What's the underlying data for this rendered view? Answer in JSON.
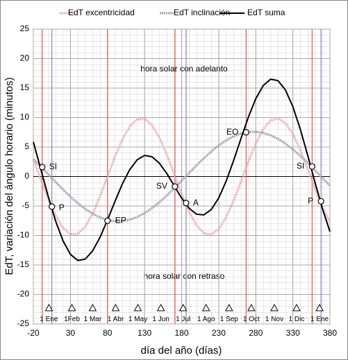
{
  "chart_data": {
    "type": "line",
    "xlabel": "día del año (días)",
    "ylabel": "EdT, variación del ángulo horario (minutos)",
    "xlim": [
      -20,
      380
    ],
    "xticks": [
      -20,
      30,
      80,
      130,
      180,
      230,
      280,
      330,
      380
    ],
    "ylim": [
      -25,
      25
    ],
    "yticks": [
      -25,
      -20,
      -15,
      -10,
      -5,
      0,
      5,
      10,
      15,
      20,
      25
    ],
    "grid": true,
    "legend": "top",
    "x": [
      -20,
      -10,
      0,
      10,
      20,
      30,
      40,
      50,
      60,
      70,
      80,
      90,
      100,
      110,
      120,
      130,
      140,
      150,
      160,
      170,
      180,
      190,
      200,
      210,
      220,
      230,
      240,
      250,
      260,
      270,
      280,
      290,
      300,
      310,
      320,
      330,
      340,
      350,
      360,
      370,
      380
    ],
    "series": [
      {
        "name": "EdT excentricidad",
        "color": "#e8a2aa",
        "values": [
          2.94,
          -0.43,
          -3.74,
          -6.62,
          -8.71,
          -9.79,
          -9.71,
          -8.5,
          -6.29,
          -3.34,
          0,
          3.34,
          6.29,
          8.5,
          9.71,
          9.79,
          8.71,
          6.62,
          3.74,
          0.43,
          -2.94,
          -5.96,
          -8.27,
          -9.62,
          -9.84,
          -8.91,
          -6.92,
          -4.13,
          -0.85,
          2.53,
          5.61,
          8.03,
          9.51,
          9.88,
          9.08,
          7.23,
          4.51,
          1.28,
          -2.11,
          -5.25,
          -7.78
        ]
      },
      {
        "name": "EdT inclinación",
        "color": "#9ca2b4",
        "values": [
          2.93,
          1.69,
          0.39,
          -0.91,
          -2.19,
          -3.41,
          -4.52,
          -5.5,
          -6.32,
          -6.95,
          -7.37,
          -7.58,
          -7.56,
          -7.32,
          -6.87,
          -6.21,
          -5.36,
          -4.36,
          -3.23,
          -2.0,
          -0.72,
          0.59,
          1.88,
          3.11,
          4.25,
          5.27,
          6.13,
          6.81,
          7.29,
          7.55,
          7.59,
          7.4,
          7.0,
          6.39,
          5.59,
          4.62,
          3.52,
          2.32,
          1.04,
          -0.26,
          -1.56
        ]
      },
      {
        "name": "EdT suma",
        "color": "#000000",
        "values": [
          5.87,
          1.26,
          -3.35,
          -7.53,
          -10.9,
          -13.2,
          -14.23,
          -14.0,
          -12.61,
          -10.29,
          -7.37,
          -4.24,
          -1.27,
          1.18,
          2.84,
          3.58,
          3.35,
          2.26,
          0.51,
          -1.57,
          -3.66,
          -5.37,
          -6.39,
          -6.51,
          -5.59,
          -3.64,
          -0.79,
          2.68,
          6.44,
          10.08,
          13.2,
          15.43,
          16.51,
          16.27,
          14.67,
          11.85,
          8.03,
          3.6,
          -1.07,
          -5.51,
          -9.34
        ]
      }
    ],
    "vlines": [
      {
        "x": -8,
        "color": "#e06060"
      },
      {
        "x": 80,
        "color": "#e06060"
      },
      {
        "x": 171,
        "color": "#e06060"
      },
      {
        "x": 267,
        "color": "#e06060"
      },
      {
        "x": 356,
        "color": "#e06060"
      },
      {
        "x": 5,
        "color": "#8890b8"
      },
      {
        "x": 186,
        "color": "#8890b8"
      },
      {
        "x": 368,
        "color": "#8890b8"
      }
    ],
    "points": [
      {
        "label": "SI",
        "x": -8,
        "y": 1.6
      },
      {
        "label": "P",
        "x": 5,
        "y": -5.1
      },
      {
        "label": "EP",
        "x": 80,
        "y": -7.5
      },
      {
        "label": "SV",
        "x": 171,
        "y": -1.7
      },
      {
        "label": "A",
        "x": 186,
        "y": -4.5
      },
      {
        "label": "EO",
        "x": 267,
        "y": 7.5
      },
      {
        "label": "SI",
        "x": 356,
        "y": 1.7
      },
      {
        "label": "P",
        "x": 368,
        "y": -4.2
      }
    ],
    "months": [
      {
        "label": "1 Ene",
        "x": 1
      },
      {
        "label": "1Feb",
        "x": 32
      },
      {
        "label": "1 Mar",
        "x": 60
      },
      {
        "label": "1 Abr",
        "x": 91
      },
      {
        "label": "1 May",
        "x": 121
      },
      {
        "label": "1 Jun",
        "x": 152
      },
      {
        "label": "1 Jul",
        "x": 182
      },
      {
        "label": "1 Ago",
        "x": 213
      },
      {
        "label": "1 Sep",
        "x": 244
      },
      {
        "label": "1 Oct",
        "x": 274
      },
      {
        "label": "1 Nov",
        "x": 305
      },
      {
        "label": "1 Dic",
        "x": 335
      },
      {
        "label": "1 Ene",
        "x": 366
      }
    ],
    "annotations": [
      {
        "text": "hora solar con adelanto"
      },
      {
        "text": "hora solar con retraso"
      }
    ]
  }
}
